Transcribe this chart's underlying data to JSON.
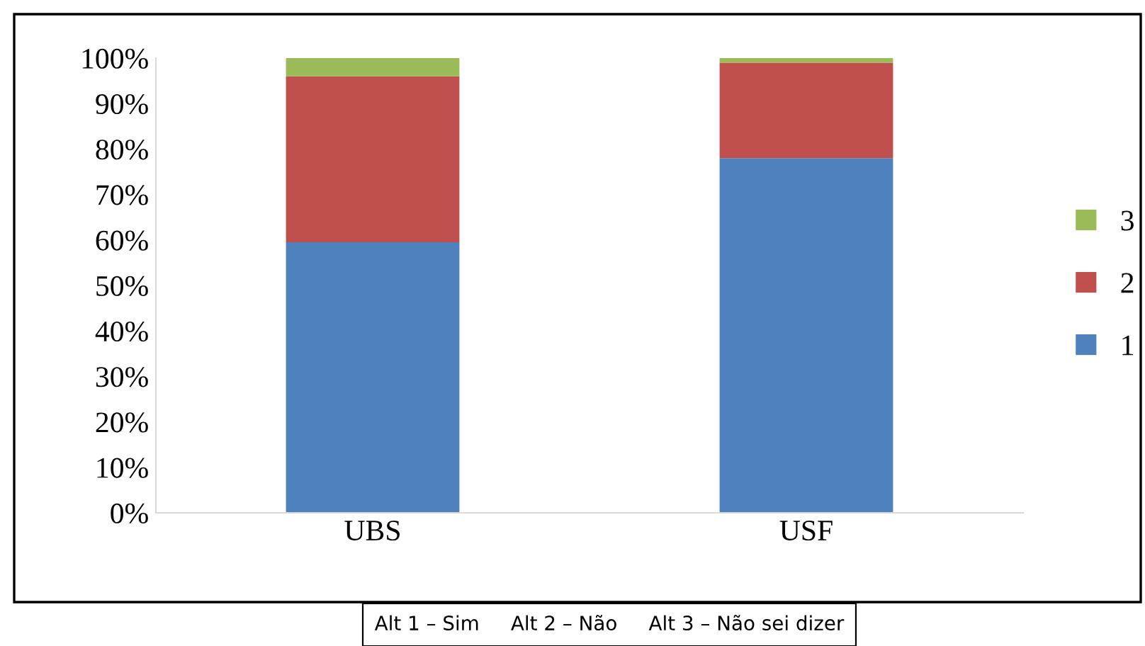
{
  "chart_data": {
    "type": "bar",
    "stacked": true,
    "categories": [
      "UBS",
      "USF"
    ],
    "series": [
      {
        "name": "1",
        "color": "#4f81bd",
        "values": [
          59.5,
          78
        ]
      },
      {
        "name": "2",
        "color": "#c0504d",
        "values": [
          36.5,
          21
        ]
      },
      {
        "name": "3",
        "color": "#9bbb59",
        "values": [
          4,
          1
        ]
      }
    ],
    "ylim": [
      0,
      100
    ],
    "yticks": [
      {
        "value": 0,
        "label": "0%"
      },
      {
        "value": 10,
        "label": "10%"
      },
      {
        "value": 20,
        "label": "20%"
      },
      {
        "value": 30,
        "label": "30%"
      },
      {
        "value": 40,
        "label": "40%"
      },
      {
        "value": 50,
        "label": "50%"
      },
      {
        "value": 60,
        "label": "60%"
      },
      {
        "value": 70,
        "label": "70%"
      },
      {
        "value": 80,
        "label": "80%"
      },
      {
        "value": 90,
        "label": "90%"
      },
      {
        "value": 100,
        "label": "100%"
      }
    ],
    "grid": false,
    "legend": "right",
    "annotations": [
      "Alt 1 – Sim     Alt 2 – Não     Alt 3 – Não sei dizer"
    ]
  }
}
